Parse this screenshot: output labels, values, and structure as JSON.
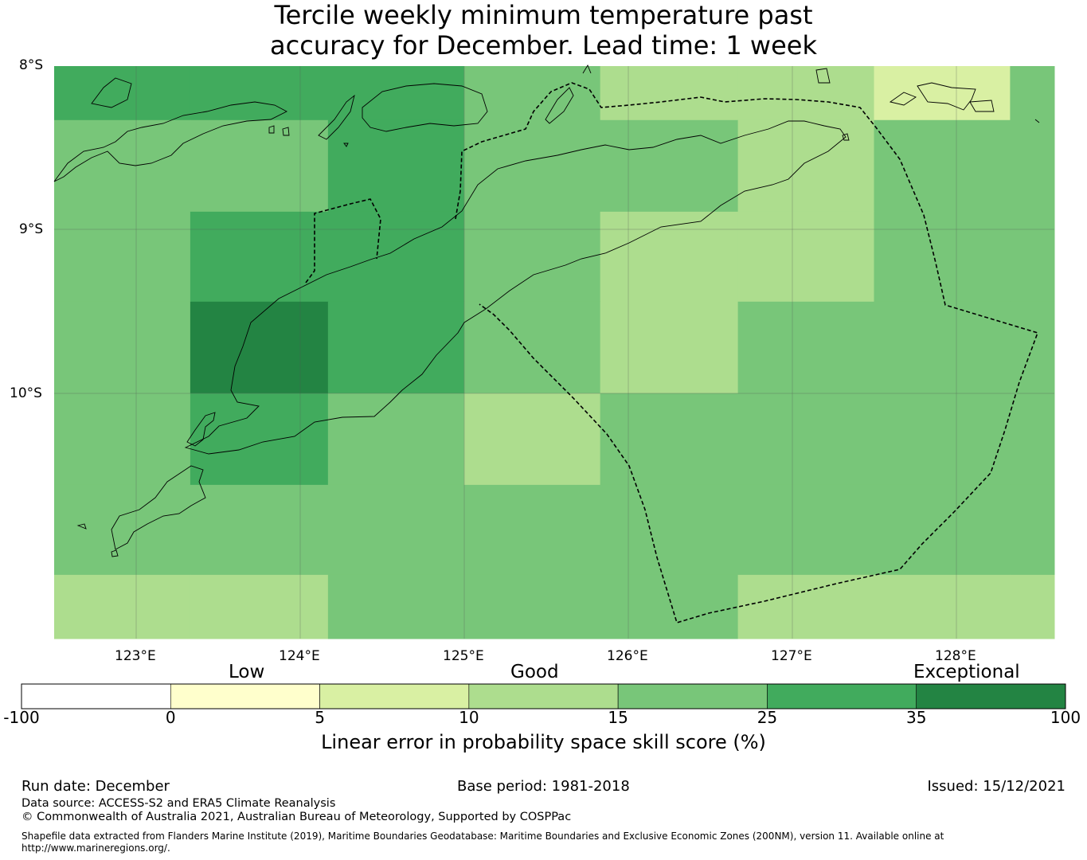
{
  "title": {
    "line1": "Tercile weekly minimum temperature past",
    "line2": "accuracy for December. Lead time: 1 week"
  },
  "map": {
    "lat_labels": [
      "8°S",
      "9°S",
      "10°S"
    ],
    "lon_labels": [
      "123°E",
      "124°E",
      "125°E",
      "126°E",
      "127°E",
      "128°E"
    ],
    "lon_range": [
      122.5,
      128.6
    ],
    "lat_range": [
      -8,
      -11.5
    ],
    "grid_lon_edges": [
      122.5,
      123.33,
      124.17,
      125.0,
      125.83,
      126.67,
      127.5,
      128.33,
      128.6
    ],
    "grid_lat_edges": [
      -8,
      -8.33,
      -8.89,
      -9.44,
      -10.0,
      -10.56,
      -11.11,
      -11.5
    ],
    "skill_grid": [
      [
        30,
        30,
        30,
        20,
        12,
        12,
        7,
        20
      ],
      [
        20,
        20,
        30,
        20,
        20,
        12,
        20,
        20
      ],
      [
        20,
        30,
        30,
        20,
        12,
        12,
        20,
        20
      ],
      [
        20,
        40,
        30,
        20,
        12,
        20,
        20,
        20
      ],
      [
        20,
        30,
        20,
        12,
        20,
        20,
        20,
        20
      ],
      [
        20,
        20,
        20,
        20,
        20,
        20,
        20,
        20
      ],
      [
        12,
        12,
        20,
        20,
        20,
        12,
        12,
        12
      ]
    ]
  },
  "colorbar": {
    "categories": [
      "Low",
      "Good",
      "Exceptional"
    ],
    "ticks": [
      "-100",
      "0",
      "5",
      "10",
      "15",
      "25",
      "35",
      "100"
    ],
    "colors": [
      "#ffffff",
      "#ffffcc",
      "#d9f0a3",
      "#addd8e",
      "#78c679",
      "#41ab5d",
      "#238443"
    ],
    "label": "Linear error in probability space skill score (%)"
  },
  "footer": {
    "run_date": "Run date: December",
    "base_period": "Base period: 1981-2018",
    "issued": "Issued: 15/12/2021",
    "data_source": "Data source: ACCESS-S2 and ERA5 Climate Reanalysis",
    "copyright": "© Commonwealth of Australia 2021, Australian Bureau of Meteorology, Supported by COSPPac",
    "shapefile": "Shapefile data extracted from Flanders Marine Institute (2019), Maritime Boundaries Geodatabase: Maritime Boundaries and Exclusive Economic Zones (200NM), version 11. Available online at http://www.marineregions.org/."
  }
}
